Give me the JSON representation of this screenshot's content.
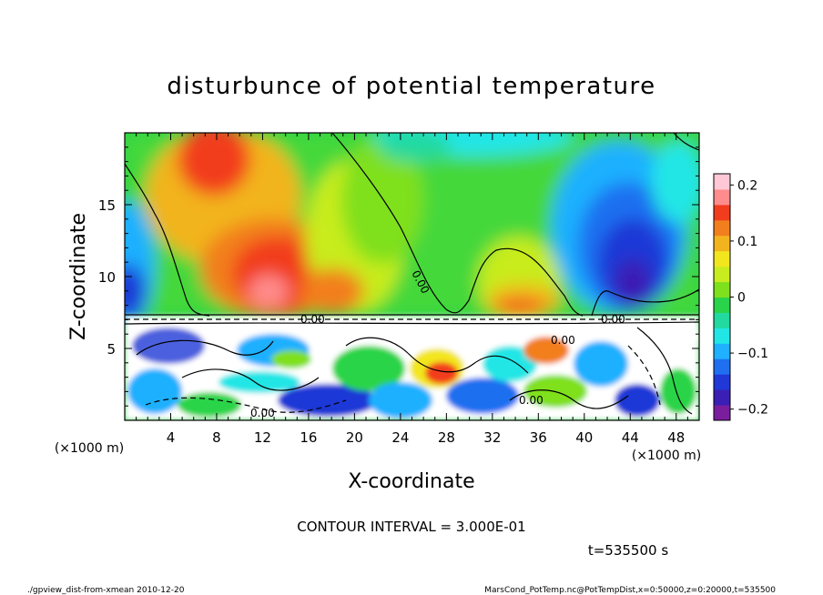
{
  "chart_data": {
    "type": "heatmap",
    "title": "disturbunce of potential temperature",
    "xlabel": "X-coordinate",
    "ylabel": "Z-coordinate",
    "x_unit": "(×1000 m)",
    "z_unit": "(×1000 m)",
    "x_ticks": [
      4,
      8,
      12,
      16,
      20,
      24,
      28,
      32,
      36,
      40,
      44,
      48
    ],
    "z_ticks": [
      5,
      10,
      15
    ],
    "xlim": [
      0,
      50
    ],
    "zlim": [
      0,
      20
    ],
    "colorbar": {
      "ticks": [
        "0.2",
        "0.1",
        "0",
        "−0.1",
        "−0.2"
      ],
      "tick_values": [
        0.2,
        0.1,
        0,
        -0.1,
        -0.2
      ],
      "range": [
        -0.22,
        0.22
      ],
      "colors": [
        "#7a1e9e",
        "#3b1fb4",
        "#1f38d6",
        "#1f6ff0",
        "#1fb0ff",
        "#22e6e6",
        "#22d9a0",
        "#2ad44a",
        "#7fe01e",
        "#c8ec1e",
        "#f2e61e",
        "#f2b41e",
        "#f27f1e",
        "#f23c1e",
        "#ff8c8c",
        "#ffc8d6"
      ]
    },
    "contour_labels": [
      "0.00",
      "0.00",
      "0.00",
      "0.00",
      "0.00",
      "0.00"
    ],
    "contour_interval": "CONTOUR INTERVAL = 3.000E-01",
    "time": "t=535500 s",
    "grid": false
  },
  "footer": {
    "left": "./gpview_dist-from-xmean   2010-12-20",
    "right": "MarsCond_PotTemp.nc@PotTempDist,x=0:50000,z=0:20000,t=535500"
  }
}
